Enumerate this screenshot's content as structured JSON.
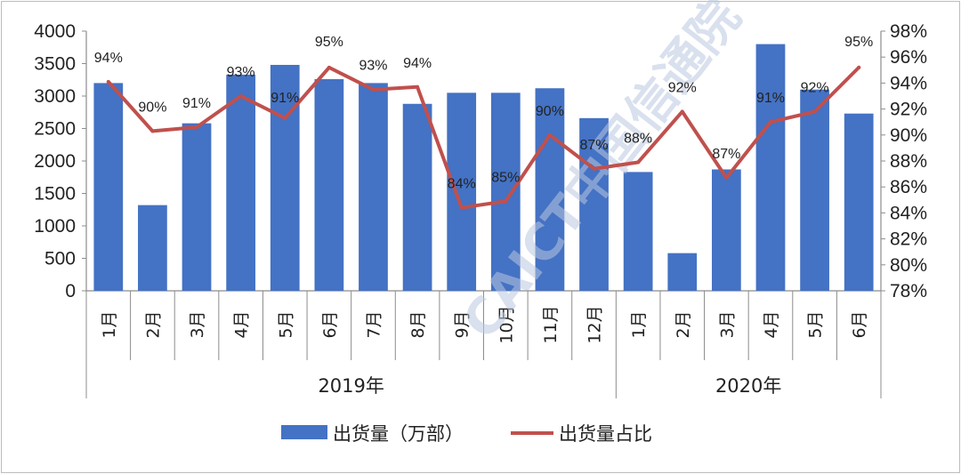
{
  "chart_data": {
    "type": "bar+line",
    "title": "",
    "groups": [
      {
        "label": "2019年",
        "count": 12
      },
      {
        "label": "2020年",
        "count": 6
      }
    ],
    "categories": [
      "1月",
      "2月",
      "3月",
      "4月",
      "5月",
      "6月",
      "7月",
      "8月",
      "9月",
      "10月",
      "11月",
      "12月",
      "1月",
      "2月",
      "3月",
      "4月",
      "5月",
      "6月"
    ],
    "series": [
      {
        "name": "出货量（万部）",
        "type": "bar",
        "axis": "left",
        "color": "#4472c4",
        "values": [
          3200,
          1320,
          2580,
          3330,
          3480,
          3260,
          3200,
          2880,
          3050,
          3050,
          3120,
          2660,
          1830,
          580,
          1870,
          3800,
          3100,
          2730
        ]
      },
      {
        "name": "出货量占比",
        "type": "line",
        "axis": "right",
        "color": "#c0504d",
        "values": [
          94.1,
          90.3,
          90.6,
          93.0,
          91.3,
          95.2,
          93.5,
          93.7,
          84.4,
          84.9,
          90.0,
          87.4,
          87.9,
          91.8,
          86.7,
          91.0,
          91.8,
          95.2
        ],
        "labels": [
          "94%",
          "90%",
          "91%",
          "93%",
          "91%",
          "95%",
          "93%",
          "94%",
          "84%",
          "85%",
          "90%",
          "87%",
          "88%",
          "92%",
          "87%",
          "91%",
          "92%",
          "95%"
        ]
      }
    ],
    "y_left": {
      "min": 0,
      "max": 4000,
      "step": 500,
      "ticks": [
        "0",
        "500",
        "1000",
        "1500",
        "2000",
        "2500",
        "3000",
        "3500",
        "4000"
      ]
    },
    "y_right": {
      "min": 78,
      "max": 98,
      "step": 2,
      "ticks": [
        "78%",
        "80%",
        "82%",
        "84%",
        "86%",
        "88%",
        "90%",
        "92%",
        "94%",
        "96%",
        "98%"
      ]
    },
    "grid": false,
    "legend_position": "bottom"
  },
  "watermark": {
    "text": "CAICT中国信通院",
    "color": "#b9c6e0"
  }
}
